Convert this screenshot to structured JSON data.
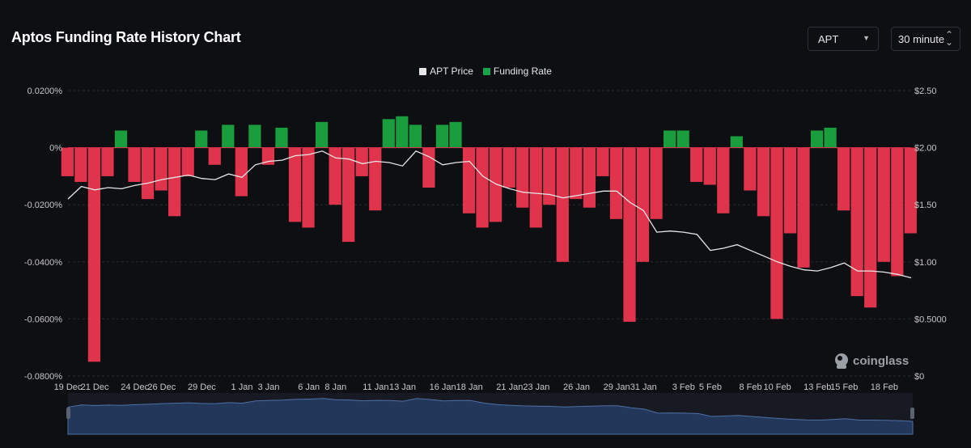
{
  "header": {
    "title": "Aptos Funding Rate History Chart",
    "coin_select": {
      "value": "APT"
    },
    "interval_select": {
      "value": "30 minute"
    }
  },
  "legend": [
    {
      "label": "APT Price",
      "color": "#e6e6e6"
    },
    {
      "label": "Funding Rate",
      "color": "#16a34a"
    }
  ],
  "watermark": {
    "text": "coinglass",
    "icon": "coinglass-logo-icon"
  },
  "colors": {
    "positive": "#1a9d3c",
    "negative": "#e0344d",
    "price": "#e6e6e6",
    "navigator_fill": "#22375a",
    "navigator_line": "#4f6fa6"
  },
  "chart_data": {
    "type": "area",
    "x_ticks": [
      "19 Dec",
      "21 Dec",
      "24 Dec",
      "26 Dec",
      "29 Dec",
      "1 Jan",
      "3 Jan",
      "6 Jan",
      "8 Jan",
      "11 Jan",
      "13 Jan",
      "16 Jan",
      "18 Jan",
      "21 Jan",
      "23 Jan",
      "26 Jan",
      "29 Jan",
      "31 Jan",
      "3 Feb",
      "5 Feb",
      "8 Feb",
      "10 Feb",
      "13 Feb",
      "15 Feb",
      "18 Feb"
    ],
    "y_left_ticks": [
      "0.0200%",
      "0%",
      "-0.0200%",
      "-0.0400%",
      "-0.0600%",
      "-0.0800%"
    ],
    "y_left_range": [
      -0.08,
      0.02
    ],
    "y_right_ticks": [
      "$2.50",
      "$2.00",
      "$1.50",
      "$1.00",
      "$0.5000",
      "$0"
    ],
    "y_right_range": [
      0,
      2.5
    ],
    "series": [
      {
        "name": "Funding Rate",
        "unit": "%",
        "points": [
          {
            "x": "19 Dec",
            "y": -0.01
          },
          {
            "x": "20 Dec",
            "y": -0.012
          },
          {
            "x": "21 Dec",
            "y": -0.075
          },
          {
            "x": "22 Dec",
            "y": -0.01
          },
          {
            "x": "23 Dec",
            "y": 0.006
          },
          {
            "x": "24 Dec",
            "y": -0.012
          },
          {
            "x": "25 Dec",
            "y": -0.018
          },
          {
            "x": "26 Dec",
            "y": -0.015
          },
          {
            "x": "27 Dec",
            "y": -0.024
          },
          {
            "x": "28 Dec",
            "y": -0.01
          },
          {
            "x": "29 Dec",
            "y": 0.006
          },
          {
            "x": "30 Dec",
            "y": -0.006
          },
          {
            "x": "31 Dec",
            "y": 0.008
          },
          {
            "x": "1 Jan",
            "y": -0.017
          },
          {
            "x": "2 Jan",
            "y": 0.008
          },
          {
            "x": "3 Jan",
            "y": -0.006
          },
          {
            "x": "4 Jan",
            "y": 0.007
          },
          {
            "x": "5 Jan",
            "y": -0.026
          },
          {
            "x": "6 Jan",
            "y": -0.028
          },
          {
            "x": "7 Jan",
            "y": 0.009
          },
          {
            "x": "8 Jan",
            "y": -0.02
          },
          {
            "x": "9 Jan",
            "y": -0.033
          },
          {
            "x": "10 Jan",
            "y": -0.01
          },
          {
            "x": "11 Jan",
            "y": -0.022
          },
          {
            "x": "12 Jan",
            "y": 0.01
          },
          {
            "x": "13 Jan",
            "y": 0.011
          },
          {
            "x": "14 Jan",
            "y": 0.008
          },
          {
            "x": "15 Jan",
            "y": -0.014
          },
          {
            "x": "16 Jan",
            "y": 0.008
          },
          {
            "x": "17 Jan",
            "y": 0.009
          },
          {
            "x": "18 Jan",
            "y": -0.023
          },
          {
            "x": "19 Jan",
            "y": -0.028
          },
          {
            "x": "20 Jan",
            "y": -0.026
          },
          {
            "x": "21 Jan",
            "y": -0.014
          },
          {
            "x": "22 Jan",
            "y": -0.021
          },
          {
            "x": "23 Jan",
            "y": -0.028
          },
          {
            "x": "24 Jan",
            "y": -0.02
          },
          {
            "x": "25 Jan",
            "y": -0.04
          },
          {
            "x": "26 Jan",
            "y": -0.018
          },
          {
            "x": "27 Jan",
            "y": -0.021
          },
          {
            "x": "28 Jan",
            "y": -0.01
          },
          {
            "x": "29 Jan",
            "y": -0.025
          },
          {
            "x": "30 Jan",
            "y": -0.061
          },
          {
            "x": "31 Jan",
            "y": -0.04
          },
          {
            "x": "1 Feb",
            "y": -0.025
          },
          {
            "x": "2 Feb",
            "y": 0.006
          },
          {
            "x": "3 Feb",
            "y": 0.006
          },
          {
            "x": "4 Feb",
            "y": -0.012
          },
          {
            "x": "5 Feb",
            "y": -0.013
          },
          {
            "x": "6 Feb",
            "y": -0.023
          },
          {
            "x": "7 Feb",
            "y": 0.004
          },
          {
            "x": "8 Feb",
            "y": -0.015
          },
          {
            "x": "9 Feb",
            "y": -0.024
          },
          {
            "x": "10 Feb",
            "y": -0.06
          },
          {
            "x": "11 Feb",
            "y": -0.03
          },
          {
            "x": "12 Feb",
            "y": -0.042
          },
          {
            "x": "13 Feb",
            "y": 0.006
          },
          {
            "x": "14 Feb",
            "y": 0.007
          },
          {
            "x": "15 Feb",
            "y": -0.022
          },
          {
            "x": "16 Feb",
            "y": -0.052
          },
          {
            "x": "17 Feb",
            "y": -0.056
          },
          {
            "x": "18 Feb",
            "y": -0.04
          },
          {
            "x": "19 Feb",
            "y": -0.045
          },
          {
            "x": "20 Feb",
            "y": -0.03
          }
        ]
      },
      {
        "name": "APT Price",
        "unit": "$",
        "points": [
          {
            "x": "19 Dec",
            "y": 1.55
          },
          {
            "x": "20 Dec",
            "y": 1.66
          },
          {
            "x": "21 Dec",
            "y": 1.63
          },
          {
            "x": "22 Dec",
            "y": 1.65
          },
          {
            "x": "23 Dec",
            "y": 1.64
          },
          {
            "x": "24 Dec",
            "y": 1.67
          },
          {
            "x": "25 Dec",
            "y": 1.69
          },
          {
            "x": "26 Dec",
            "y": 1.72
          },
          {
            "x": "27 Dec",
            "y": 1.74
          },
          {
            "x": "28 Dec",
            "y": 1.76
          },
          {
            "x": "29 Dec",
            "y": 1.73
          },
          {
            "x": "30 Dec",
            "y": 1.72
          },
          {
            "x": "31 Dec",
            "y": 1.77
          },
          {
            "x": "1 Jan",
            "y": 1.74
          },
          {
            "x": "2 Jan",
            "y": 1.85
          },
          {
            "x": "3 Jan",
            "y": 1.88
          },
          {
            "x": "4 Jan",
            "y": 1.89
          },
          {
            "x": "5 Jan",
            "y": 1.93
          },
          {
            "x": "6 Jan",
            "y": 1.94
          },
          {
            "x": "7 Jan",
            "y": 1.97
          },
          {
            "x": "8 Jan",
            "y": 1.91
          },
          {
            "x": "9 Jan",
            "y": 1.9
          },
          {
            "x": "10 Jan",
            "y": 1.86
          },
          {
            "x": "11 Jan",
            "y": 1.88
          },
          {
            "x": "12 Jan",
            "y": 1.87
          },
          {
            "x": "13 Jan",
            "y": 1.84
          },
          {
            "x": "14 Jan",
            "y": 1.97
          },
          {
            "x": "15 Jan",
            "y": 1.92
          },
          {
            "x": "16 Jan",
            "y": 1.85
          },
          {
            "x": "17 Jan",
            "y": 1.87
          },
          {
            "x": "18 Jan",
            "y": 1.88
          },
          {
            "x": "19 Jan",
            "y": 1.75
          },
          {
            "x": "20 Jan",
            "y": 1.68
          },
          {
            "x": "21 Jan",
            "y": 1.64
          },
          {
            "x": "22 Jan",
            "y": 1.61
          },
          {
            "x": "23 Jan",
            "y": 1.6
          },
          {
            "x": "24 Jan",
            "y": 1.59
          },
          {
            "x": "25 Jan",
            "y": 1.56
          },
          {
            "x": "26 Jan",
            "y": 1.58
          },
          {
            "x": "27 Jan",
            "y": 1.6
          },
          {
            "x": "28 Jan",
            "y": 1.62
          },
          {
            "x": "29 Jan",
            "y": 1.62
          },
          {
            "x": "30 Jan",
            "y": 1.52
          },
          {
            "x": "31 Jan",
            "y": 1.45
          },
          {
            "x": "1 Feb",
            "y": 1.26
          },
          {
            "x": "2 Feb",
            "y": 1.27
          },
          {
            "x": "3 Feb",
            "y": 1.26
          },
          {
            "x": "4 Feb",
            "y": 1.24
          },
          {
            "x": "5 Feb",
            "y": 1.1
          },
          {
            "x": "6 Feb",
            "y": 1.12
          },
          {
            "x": "7 Feb",
            "y": 1.15
          },
          {
            "x": "8 Feb",
            "y": 1.1
          },
          {
            "x": "9 Feb",
            "y": 1.05
          },
          {
            "x": "10 Feb",
            "y": 1.0
          },
          {
            "x": "11 Feb",
            "y": 0.96
          },
          {
            "x": "12 Feb",
            "y": 0.93
          },
          {
            "x": "13 Feb",
            "y": 0.92
          },
          {
            "x": "14 Feb",
            "y": 0.95
          },
          {
            "x": "15 Feb",
            "y": 0.99
          },
          {
            "x": "16 Feb",
            "y": 0.92
          },
          {
            "x": "17 Feb",
            "y": 0.92
          },
          {
            "x": "18 Feb",
            "y": 0.91
          },
          {
            "x": "19 Feb",
            "y": 0.89
          },
          {
            "x": "20 Feb",
            "y": 0.86
          }
        ]
      }
    ],
    "grid": true,
    "legend_position": "top-center"
  }
}
